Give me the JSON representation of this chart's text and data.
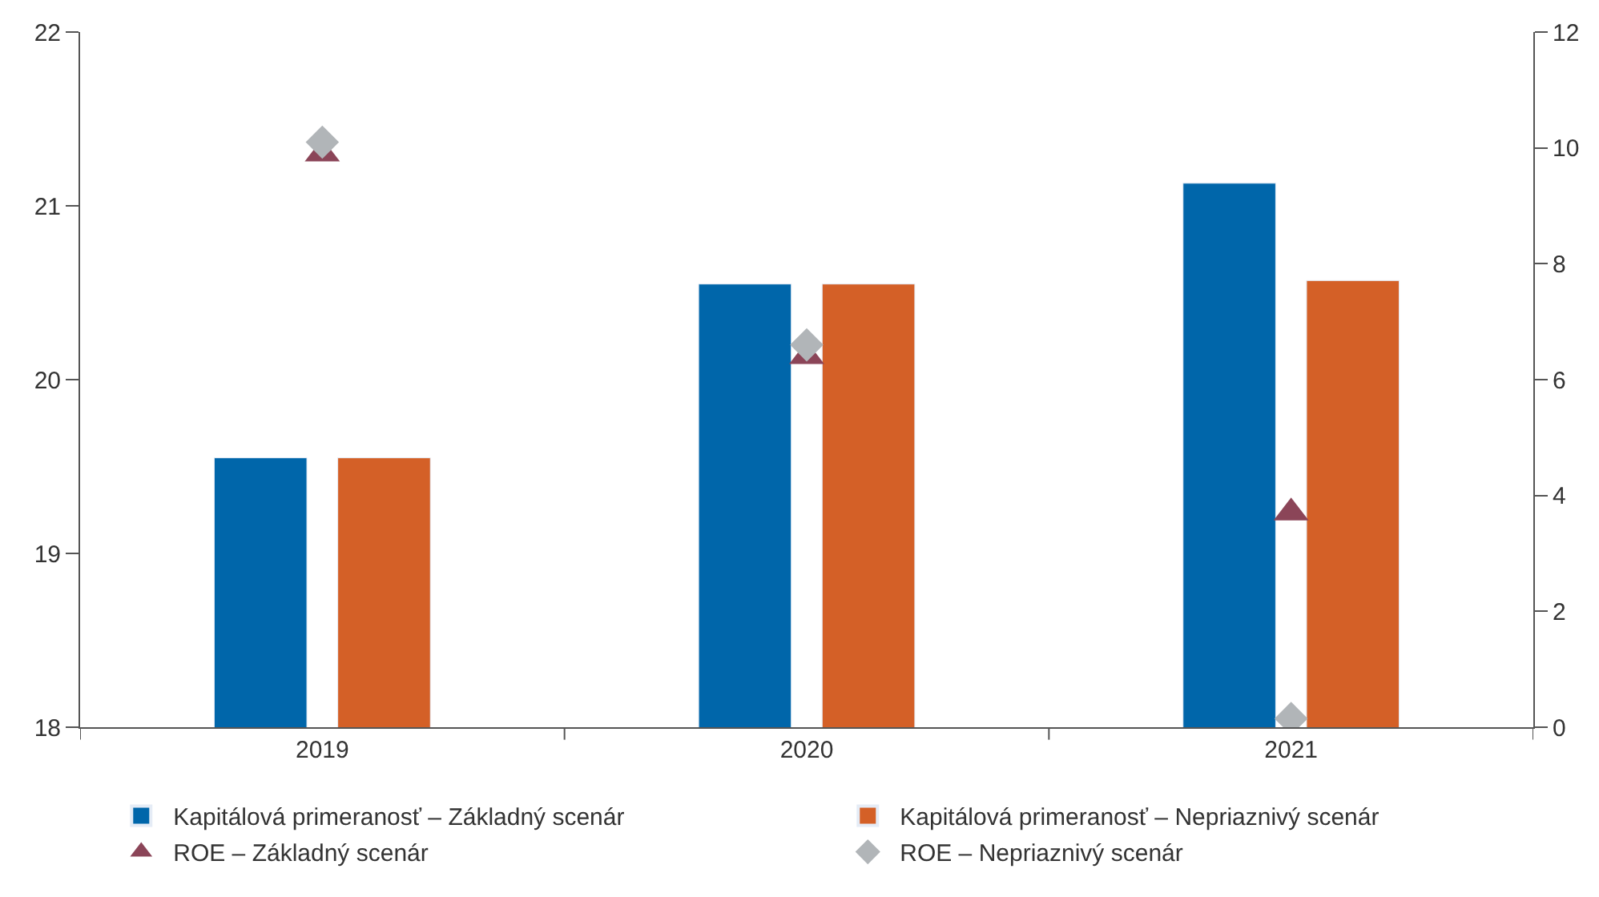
{
  "chart_data": {
    "type": "bar",
    "categories": [
      "2019",
      "2020",
      "2021"
    ],
    "series": [
      {
        "name": "Kapitálová primeranosť – Základný scenár",
        "color": "#0066aa",
        "values": [
          19.55,
          20.55,
          21.13
        ]
      },
      {
        "name": "Kapitálová primeranosť – Nepriaznivý scenár",
        "color": "#d46027",
        "values": [
          19.55,
          20.55,
          20.57
        ]
      },
      {
        "name": "ROE – Základný scenár",
        "type": "scatter",
        "axis": "y2",
        "marker": "triangle",
        "color": "#8b4558",
        "values": [
          9.9,
          6.4,
          3.7
        ]
      },
      {
        "name": "ROE – Nepriaznivý scenár",
        "type": "scatter",
        "axis": "y2",
        "marker": "diamond",
        "color": "#b1b5b8",
        "values": [
          10.1,
          6.6,
          0.15
        ]
      }
    ],
    "ylim": [
      18,
      22
    ],
    "yticks": [
      18,
      19,
      20,
      21,
      22
    ],
    "y2lim": [
      0,
      12
    ],
    "y2ticks": [
      0,
      2,
      4,
      6,
      8,
      10,
      12
    ],
    "legend": "bottom"
  }
}
